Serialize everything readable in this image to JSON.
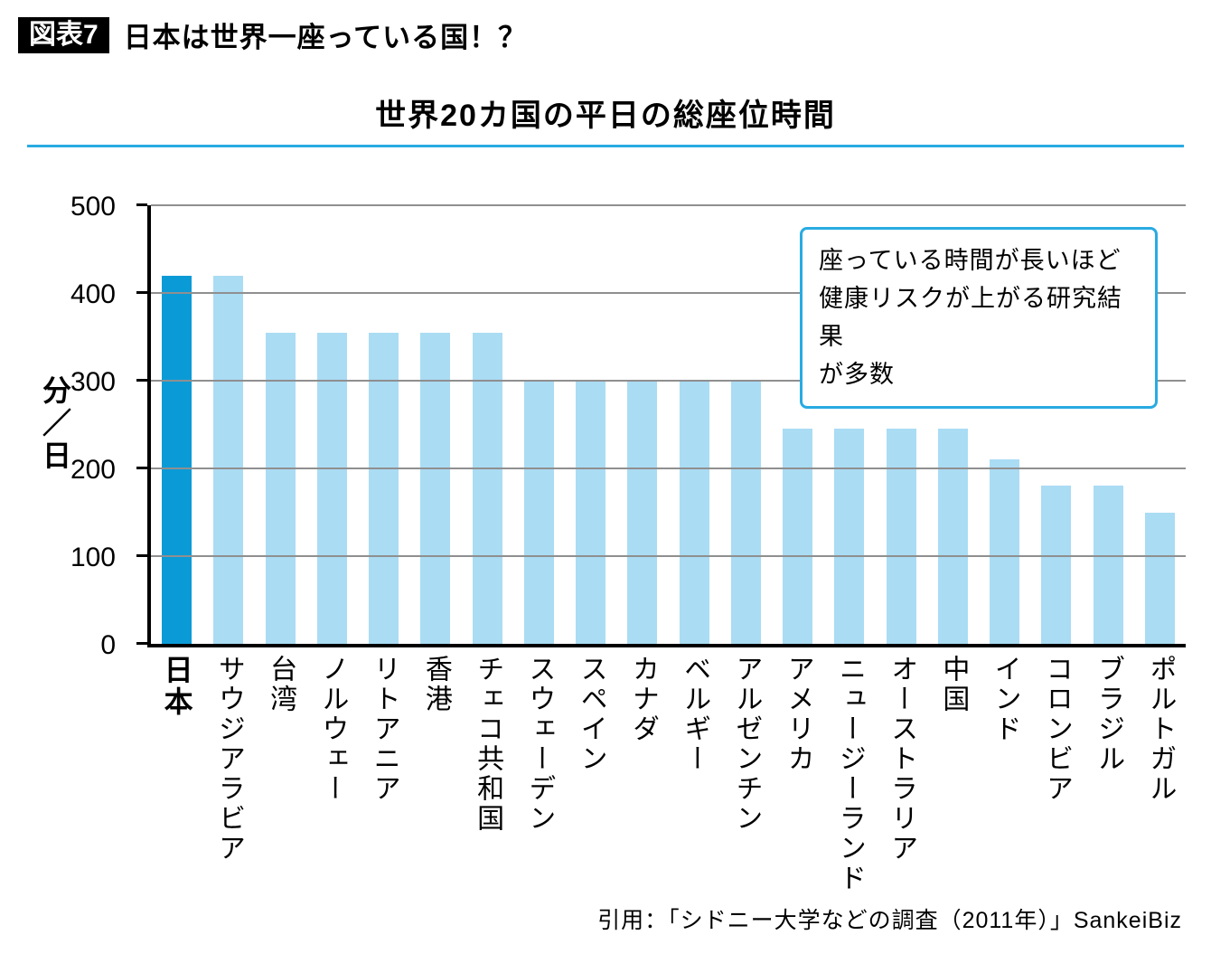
{
  "figure": {
    "label": "図表7",
    "heading": "日本は世界一座っている国！？"
  },
  "chart_title": "世界20カ国の平日の総座位時間",
  "annotation": {
    "lines": [
      "座っている時間が長いほど",
      "健康リスクが上がる研究結果",
      "が多数"
    ]
  },
  "source": "引用：「シドニー大学などの調査（2011年）」SankeiBiz",
  "colors": {
    "accent_line": "#29abe2",
    "bar_light": "#aadcf4",
    "bar_highlight": "#0a9bd7",
    "gridline": "#8f8f8f"
  },
  "chart_data": {
    "type": "bar",
    "title": "世界20カ国の平日の総座位時間",
    "xlabel": "",
    "ylabel": "分／日",
    "ylim": [
      0,
      500
    ],
    "yticks": [
      0,
      100,
      200,
      300,
      400,
      500
    ],
    "grid": true,
    "legend": "none",
    "categories": [
      "日本",
      "サウジアラビア",
      "台湾",
      "ノルウェー",
      "リトアニア",
      "香港",
      "チェコ共和国",
      "スウェーデン",
      "スペイン",
      "カナダ",
      "ベルギー",
      "アルゼンチン",
      "アメリカ",
      "ニュージーランド",
      "オーストラリア",
      "中国",
      "インド",
      "コロンビア",
      "ブラジル",
      "ポルトガル"
    ],
    "values": [
      420,
      420,
      355,
      355,
      355,
      355,
      355,
      300,
      300,
      300,
      300,
      300,
      245,
      245,
      245,
      245,
      210,
      180,
      180,
      150
    ],
    "highlight_index": 0,
    "highlight_label": "日本"
  }
}
